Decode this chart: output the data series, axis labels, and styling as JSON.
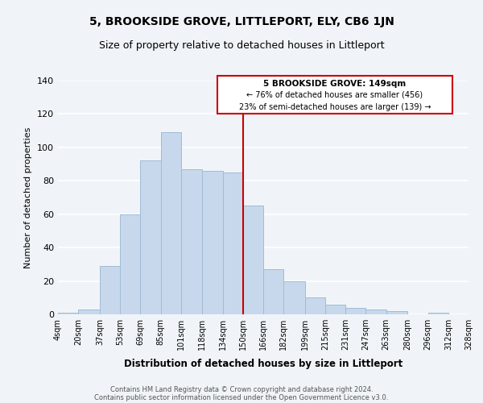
{
  "title": "5, BROOKSIDE GROVE, LITTLEPORT, ELY, CB6 1JN",
  "subtitle": "Size of property relative to detached houses in Littleport",
  "xlabel": "Distribution of detached houses by size in Littleport",
  "ylabel": "Number of detached properties",
  "footer_lines": [
    "Contains HM Land Registry data © Crown copyright and database right 2024.",
    "Contains public sector information licensed under the Open Government Licence v3.0."
  ],
  "bin_edges": [
    4,
    20,
    37,
    53,
    69,
    85,
    101,
    118,
    134,
    150,
    166,
    182,
    199,
    215,
    231,
    247,
    263,
    280,
    296,
    312,
    328
  ],
  "bar_heights": [
    1,
    3,
    29,
    60,
    92,
    109,
    87,
    86,
    85,
    65,
    27,
    20,
    10,
    6,
    4,
    3,
    2,
    0,
    1,
    0
  ],
  "bar_color": "#c8d8ec",
  "bar_edgecolor": "#a0bcd4",
  "vline_x": 150,
  "vline_color": "#cc0000",
  "ylim": [
    0,
    140
  ],
  "yticks": [
    0,
    20,
    40,
    60,
    80,
    100,
    120,
    140
  ],
  "annotation_title": "5 BROOKSIDE GROVE: 149sqm",
  "annotation_line1": "← 76% of detached houses are smaller (456)",
  "annotation_line2": "23% of semi-detached houses are larger (139) →",
  "annotation_box_edgecolor": "#cc0000",
  "annotation_box_facecolor": "#ffffff",
  "xtick_labels": [
    "4sqm",
    "20sqm",
    "37sqm",
    "53sqm",
    "69sqm",
    "85sqm",
    "101sqm",
    "118sqm",
    "134sqm",
    "150sqm",
    "166sqm",
    "182sqm",
    "199sqm",
    "215sqm",
    "231sqm",
    "247sqm",
    "263sqm",
    "280sqm",
    "296sqm",
    "312sqm",
    "328sqm"
  ],
  "background_color": "#f0f4f8",
  "grid_color": "#ffffff",
  "title_fontsize": 10,
  "subtitle_fontsize": 9
}
